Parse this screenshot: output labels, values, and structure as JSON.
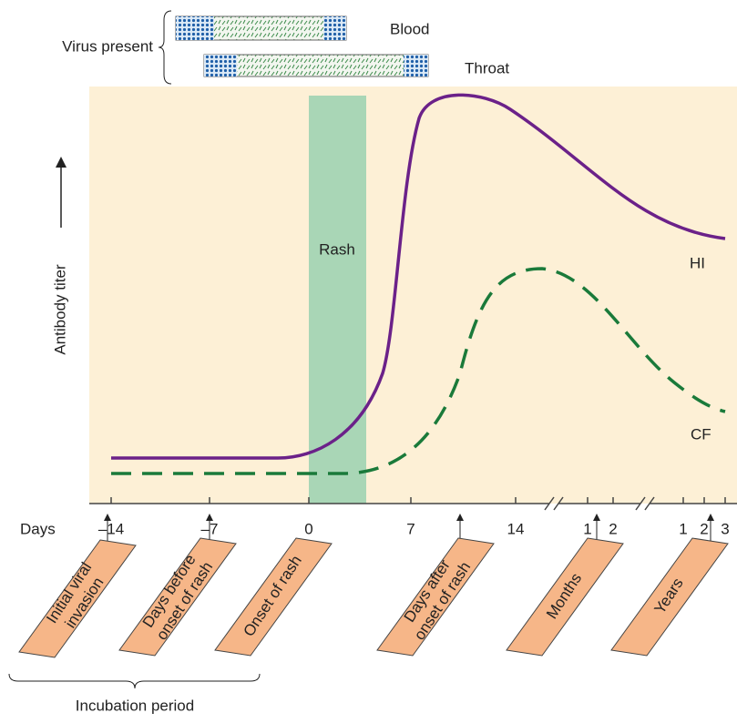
{
  "virus": {
    "label": "Virus present",
    "blood": "Blood",
    "throat": "Throat"
  },
  "axis": {
    "y_label": "Antibody titer",
    "x_label": "Days",
    "ticks": [
      "–14",
      "–7",
      "0",
      "7",
      "14",
      "1",
      "2",
      "1",
      "2",
      "3"
    ]
  },
  "plot": {
    "rash": "Rash",
    "hi": "HI",
    "cf": "CF"
  },
  "boxes": [
    [
      "Initial viral",
      "invasion"
    ],
    [
      "Days before",
      "onset of rash"
    ],
    [
      "Onset of rash"
    ],
    [
      "Days after",
      "onset of rash"
    ],
    [
      "Months"
    ],
    [
      "Years"
    ]
  ],
  "incubation": "Incubation period"
}
